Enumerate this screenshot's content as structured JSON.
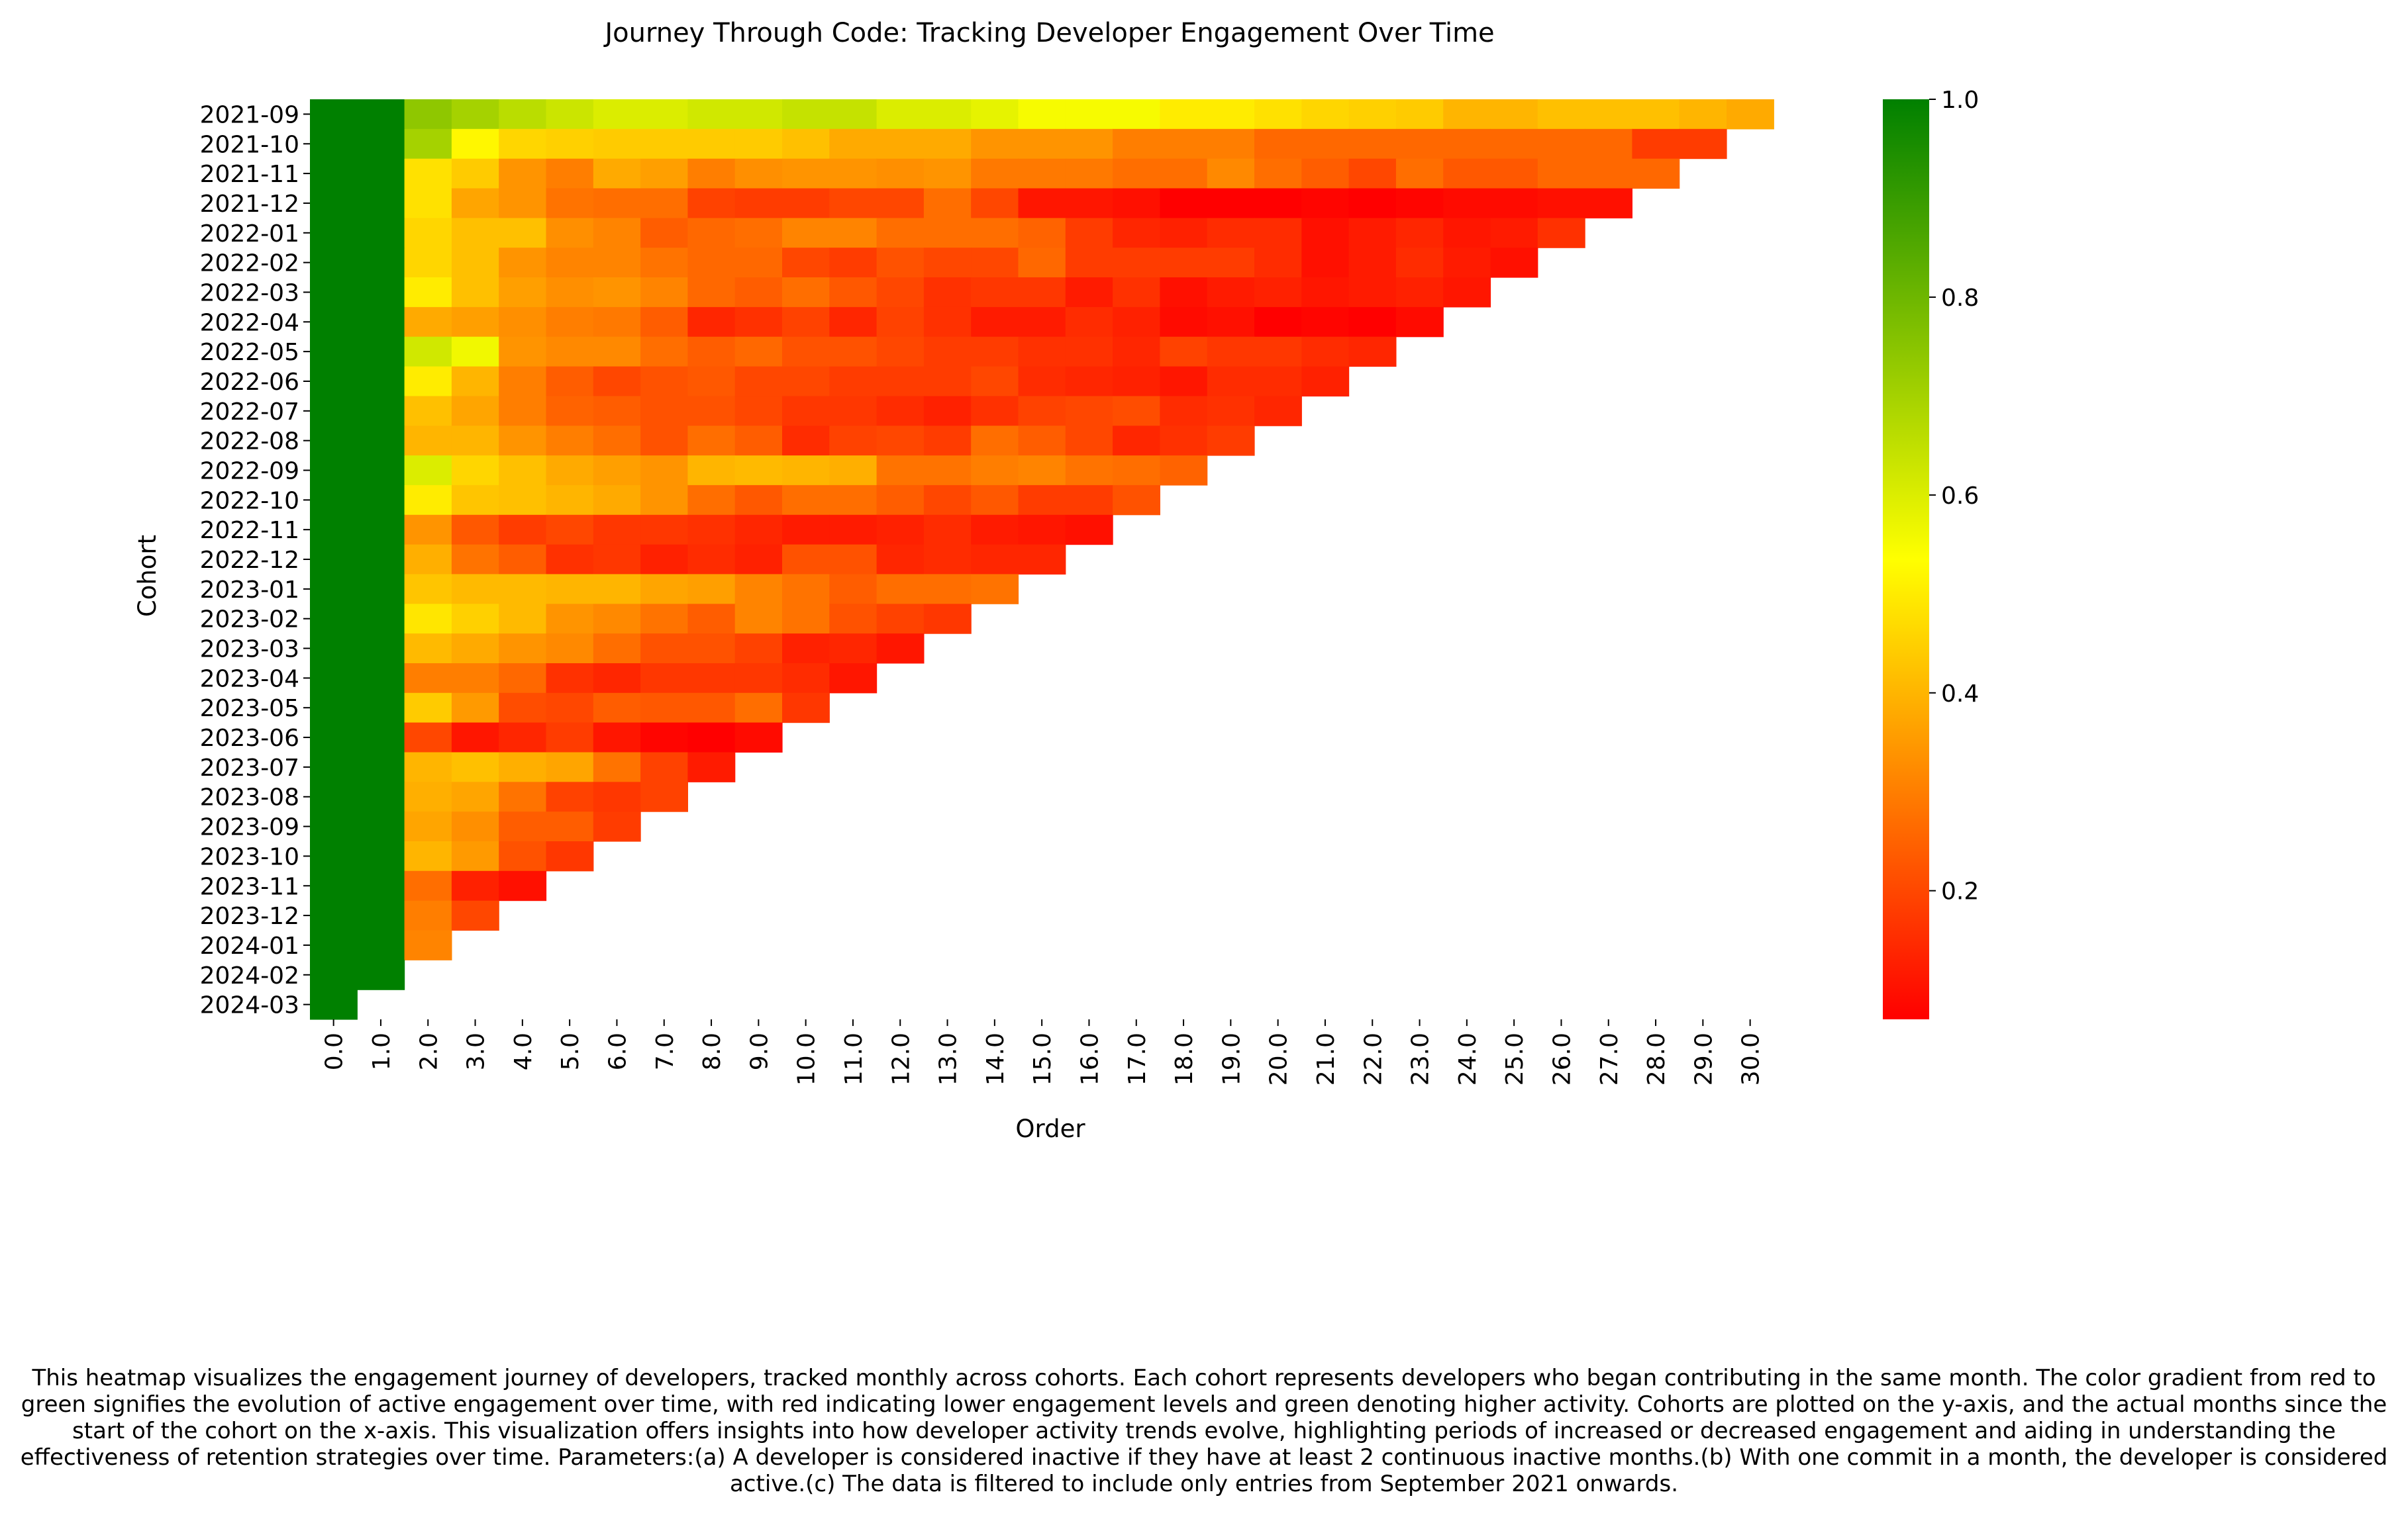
{
  "chart_data": {
    "type": "heatmap",
    "title": "Journey Through Code: Tracking Developer Engagement Over Time",
    "xlabel": "Order",
    "ylabel": "Cohort",
    "x_ticks": [
      "0.0",
      "1.0",
      "2.0",
      "3.0",
      "4.0",
      "5.0",
      "6.0",
      "7.0",
      "8.0",
      "9.0",
      "10.0",
      "11.0",
      "12.0",
      "13.0",
      "14.0",
      "15.0",
      "16.0",
      "17.0",
      "18.0",
      "19.0",
      "20.0",
      "21.0",
      "22.0",
      "23.0",
      "24.0",
      "25.0",
      "26.0",
      "27.0",
      "28.0",
      "29.0",
      "30.0"
    ],
    "y_categories": [
      "2021-09",
      "2021-10",
      "2021-11",
      "2021-12",
      "2022-01",
      "2022-02",
      "2022-03",
      "2022-04",
      "2022-05",
      "2022-06",
      "2022-07",
      "2022-08",
      "2022-09",
      "2022-10",
      "2022-11",
      "2022-12",
      "2023-01",
      "2023-02",
      "2023-03",
      "2023-04",
      "2023-05",
      "2023-06",
      "2023-07",
      "2023-08",
      "2023-09",
      "2023-10",
      "2023-11",
      "2023-12",
      "2024-01",
      "2024-02",
      "2024-03"
    ],
    "values": [
      [
        1,
        1,
        0.74,
        0.7,
        0.66,
        0.63,
        0.6,
        0.6,
        0.62,
        0.62,
        0.64,
        0.64,
        0.6,
        0.6,
        0.58,
        0.55,
        0.55,
        0.55,
        0.5,
        0.5,
        0.48,
        0.46,
        0.45,
        0.44,
        0.4,
        0.4,
        0.42,
        0.42,
        0.42,
        0.4,
        0.38
      ],
      [
        1,
        1,
        0.7,
        0.52,
        0.46,
        0.45,
        0.44,
        0.44,
        0.44,
        0.44,
        0.42,
        0.38,
        0.38,
        0.38,
        0.34,
        0.34,
        0.34,
        0.3,
        0.3,
        0.3,
        0.26,
        0.26,
        0.26,
        0.26,
        0.26,
        0.26,
        0.26,
        0.26,
        0.18,
        0.18
      ],
      [
        1,
        1,
        0.48,
        0.44,
        0.34,
        0.3,
        0.38,
        0.36,
        0.3,
        0.33,
        0.34,
        0.34,
        0.33,
        0.34,
        0.29,
        0.29,
        0.29,
        0.27,
        0.27,
        0.32,
        0.27,
        0.24,
        0.2,
        0.27,
        0.23,
        0.23,
        0.26,
        0.26,
        0.26
      ],
      [
        1,
        1,
        0.48,
        0.37,
        0.34,
        0.28,
        0.27,
        0.27,
        0.19,
        0.18,
        0.18,
        0.2,
        0.2,
        0.27,
        0.2,
        0.11,
        0.11,
        0.1,
        0.07,
        0.07,
        0.07,
        0.08,
        0.07,
        0.08,
        0.09,
        0.09,
        0.1,
        0.1
      ],
      [
        1,
        1,
        0.46,
        0.42,
        0.42,
        0.33,
        0.31,
        0.24,
        0.26,
        0.27,
        0.31,
        0.31,
        0.27,
        0.27,
        0.27,
        0.25,
        0.18,
        0.14,
        0.13,
        0.15,
        0.15,
        0.1,
        0.12,
        0.14,
        0.11,
        0.12,
        0.16
      ],
      [
        1,
        1,
        0.46,
        0.42,
        0.34,
        0.31,
        0.31,
        0.28,
        0.26,
        0.26,
        0.2,
        0.18,
        0.22,
        0.2,
        0.2,
        0.26,
        0.18,
        0.18,
        0.18,
        0.18,
        0.15,
        0.1,
        0.12,
        0.15,
        0.12,
        0.1
      ],
      [
        1,
        1,
        0.5,
        0.42,
        0.36,
        0.33,
        0.34,
        0.31,
        0.26,
        0.24,
        0.27,
        0.23,
        0.2,
        0.16,
        0.17,
        0.17,
        0.12,
        0.16,
        0.1,
        0.12,
        0.13,
        0.11,
        0.12,
        0.13,
        0.11
      ],
      [
        1,
        1,
        0.38,
        0.36,
        0.33,
        0.3,
        0.29,
        0.24,
        0.14,
        0.16,
        0.19,
        0.14,
        0.19,
        0.16,
        0.12,
        0.12,
        0.15,
        0.13,
        0.09,
        0.1,
        0.07,
        0.08,
        0.07,
        0.09
      ],
      [
        1,
        1,
        0.62,
        0.56,
        0.34,
        0.32,
        0.32,
        0.27,
        0.24,
        0.26,
        0.22,
        0.22,
        0.2,
        0.18,
        0.18,
        0.16,
        0.16,
        0.14,
        0.19,
        0.17,
        0.17,
        0.15,
        0.14
      ],
      [
        1,
        1,
        0.5,
        0.4,
        0.3,
        0.24,
        0.2,
        0.22,
        0.23,
        0.2,
        0.2,
        0.18,
        0.18,
        0.18,
        0.2,
        0.15,
        0.14,
        0.13,
        0.11,
        0.15,
        0.15,
        0.13
      ],
      [
        1,
        1,
        0.42,
        0.37,
        0.3,
        0.25,
        0.24,
        0.22,
        0.22,
        0.2,
        0.17,
        0.17,
        0.15,
        0.13,
        0.16,
        0.19,
        0.2,
        0.21,
        0.15,
        0.16,
        0.14
      ],
      [
        1,
        1,
        0.4,
        0.4,
        0.34,
        0.3,
        0.27,
        0.22,
        0.27,
        0.24,
        0.15,
        0.19,
        0.2,
        0.18,
        0.27,
        0.24,
        0.2,
        0.14,
        0.16,
        0.18
      ],
      [
        1,
        1,
        0.6,
        0.46,
        0.42,
        0.38,
        0.36,
        0.34,
        0.4,
        0.41,
        0.4,
        0.39,
        0.28,
        0.28,
        0.3,
        0.31,
        0.28,
        0.27,
        0.25
      ],
      [
        1,
        1,
        0.5,
        0.43,
        0.42,
        0.4,
        0.38,
        0.34,
        0.27,
        0.23,
        0.27,
        0.27,
        0.24,
        0.2,
        0.23,
        0.18,
        0.18,
        0.22
      ],
      [
        1,
        1,
        0.34,
        0.23,
        0.18,
        0.2,
        0.17,
        0.17,
        0.16,
        0.14,
        0.12,
        0.12,
        0.13,
        0.15,
        0.12,
        0.11,
        0.1
      ],
      [
        1,
        1,
        0.39,
        0.28,
        0.24,
        0.16,
        0.17,
        0.13,
        0.15,
        0.13,
        0.22,
        0.22,
        0.14,
        0.15,
        0.14,
        0.14
      ],
      [
        1,
        1,
        0.43,
        0.41,
        0.41,
        0.4,
        0.4,
        0.37,
        0.36,
        0.31,
        0.28,
        0.24,
        0.27,
        0.27,
        0.28
      ],
      [
        1,
        1,
        0.49,
        0.45,
        0.41,
        0.34,
        0.32,
        0.28,
        0.24,
        0.31,
        0.28,
        0.22,
        0.19,
        0.17
      ],
      [
        1,
        1,
        0.41,
        0.38,
        0.34,
        0.32,
        0.27,
        0.22,
        0.22,
        0.19,
        0.13,
        0.14,
        0.11
      ],
      [
        1,
        1,
        0.3,
        0.3,
        0.26,
        0.16,
        0.14,
        0.17,
        0.17,
        0.17,
        0.15,
        0.11
      ],
      [
        1,
        1,
        0.44,
        0.35,
        0.21,
        0.2,
        0.24,
        0.23,
        0.23,
        0.27,
        0.17
      ],
      [
        1,
        1,
        0.2,
        0.11,
        0.14,
        0.18,
        0.11,
        0.08,
        0.07,
        0.09
      ],
      [
        1,
        1,
        0.4,
        0.42,
        0.39,
        0.37,
        0.28,
        0.19,
        0.12
      ],
      [
        1,
        1,
        0.39,
        0.37,
        0.28,
        0.19,
        0.17,
        0.19
      ],
      [
        1,
        1,
        0.37,
        0.33,
        0.24,
        0.24,
        0.18
      ],
      [
        1,
        1,
        0.4,
        0.35,
        0.22,
        0.17
      ],
      [
        1,
        1,
        0.27,
        0.13,
        0.1
      ],
      [
        1,
        1,
        0.3,
        0.2
      ],
      [
        1,
        1,
        0.31
      ],
      [
        1,
        1
      ],
      [
        1
      ]
    ],
    "colorbar": {
      "min": 0.07,
      "max": 1.0,
      "ticks": [
        "0.2",
        "0.4",
        "0.6",
        "0.8",
        "1.0"
      ],
      "tick_values": [
        0.2,
        0.4,
        0.6,
        0.8,
        1.0
      ],
      "colors": [
        "#ff0000",
        "#ffff00",
        "#008000"
      ]
    }
  },
  "caption": "This heatmap visualizes the engagement journey of developers, tracked monthly across cohorts. Each cohort represents developers who began contributing in the same month. The color gradient from red to green signifies the evolution of active engagement over time, with red indicating lower engagement levels and green denoting higher activity. Cohorts are plotted on the y-axis, and the actual months since the start of the cohort on the x-axis. This visualization offers insights into how developer activity trends evolve, highlighting periods of increased or decreased engagement and aiding in understanding the effectiveness of retention strategies over time. Parameters:(a) A developer is considered inactive if they have at least 2 continuous inactive months.(b) With one commit in a month, the developer is considered active.(c) The data is filtered to include only entries from September 2021 onwards."
}
